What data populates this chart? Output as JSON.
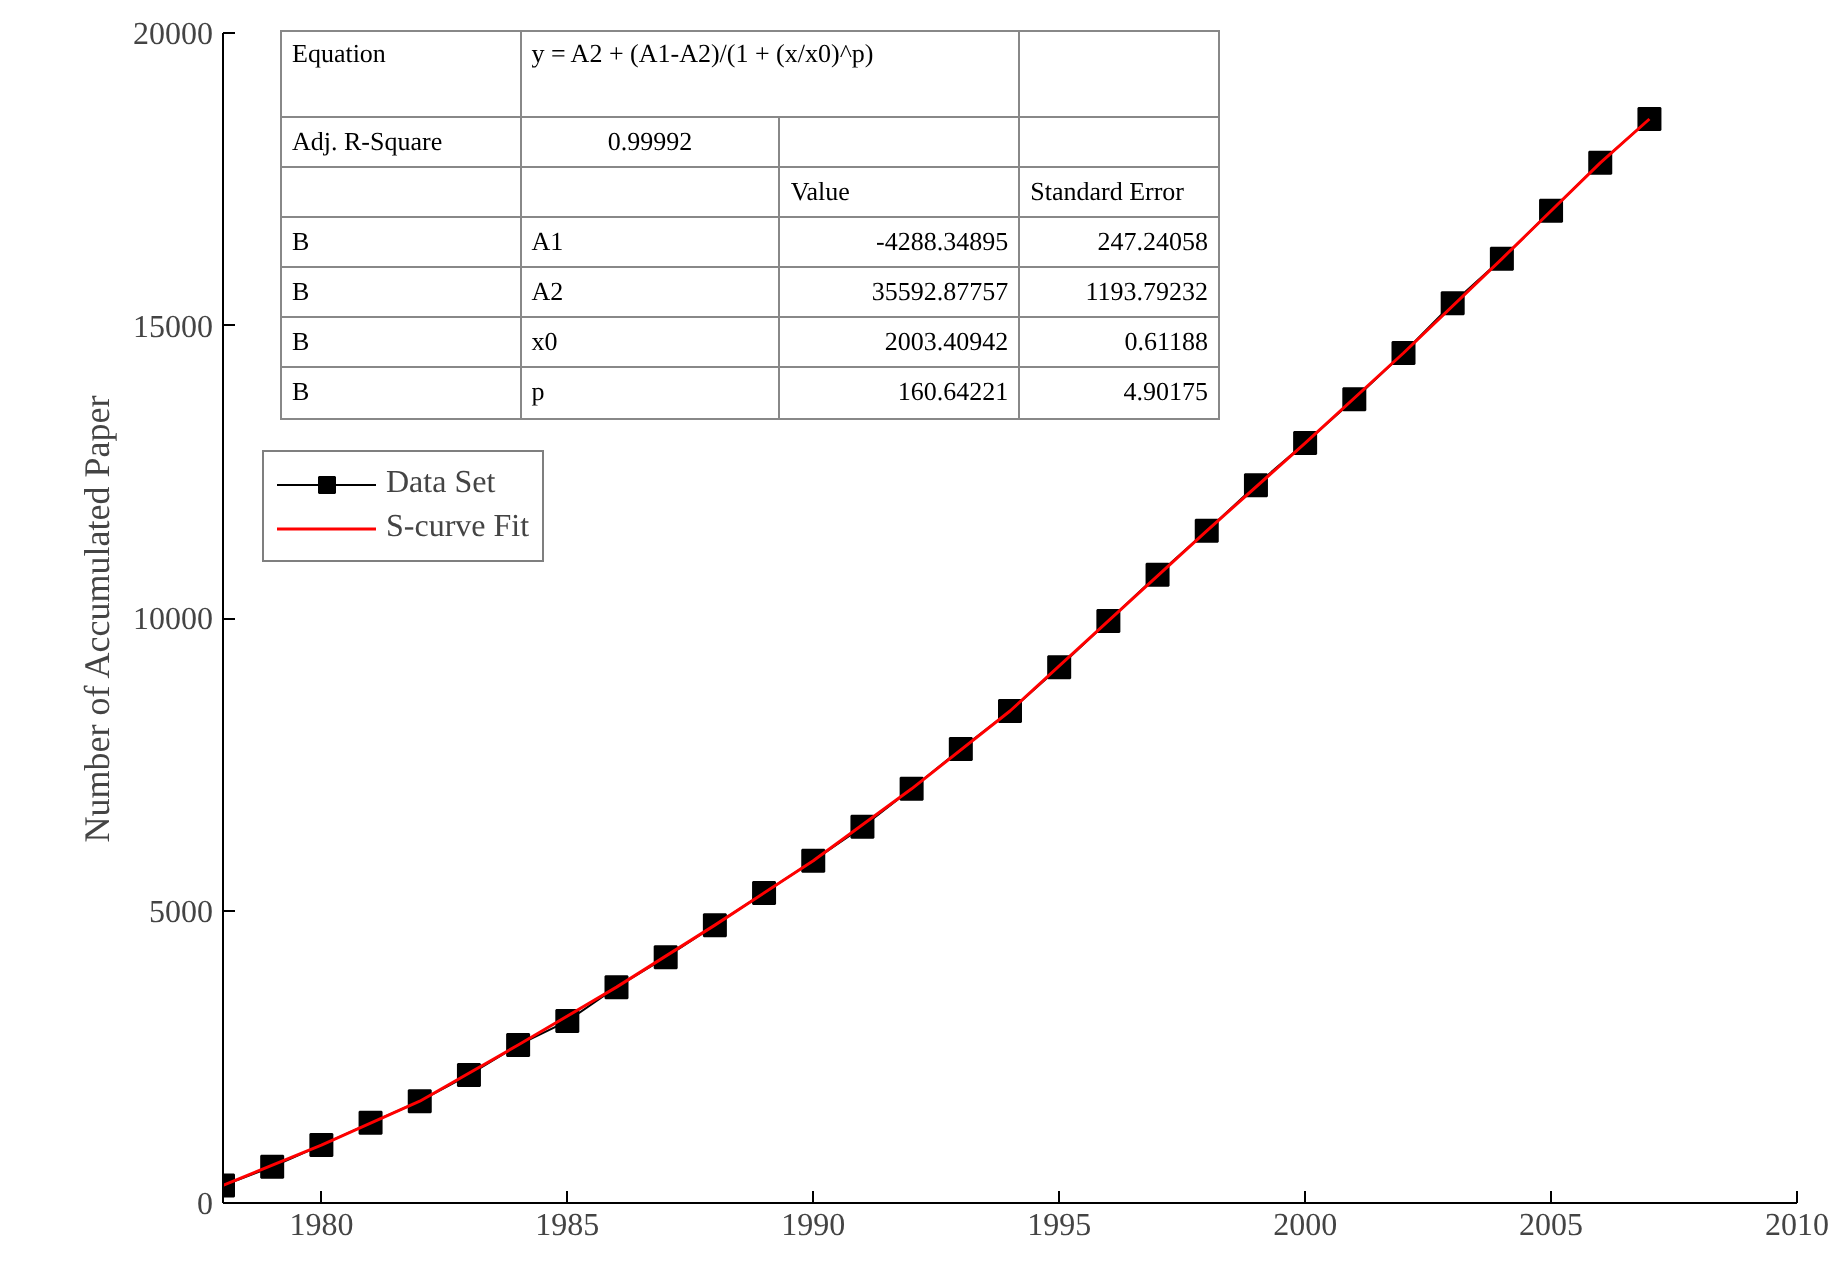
{
  "chart_data": {
    "type": "line",
    "ylabel": "Number of Accumulated Paper",
    "x": [
      1978,
      1979,
      1980,
      1981,
      1982,
      1983,
      1984,
      1985,
      1986,
      1987,
      1988,
      1989,
      1990,
      1991,
      1992,
      1993,
      1994,
      1995,
      1996,
      1997,
      1998,
      1999,
      2000,
      2001,
      2002,
      2003,
      2004,
      2005,
      2006,
      2007
    ],
    "series": [
      {
        "name": "Data Set",
        "color": "#000000",
        "marker": "square",
        "values": [
          300,
          620,
          990,
          1370,
          1740,
          2190,
          2700,
          3110,
          3690,
          4200,
          4750,
          5300,
          5850,
          6430,
          7080,
          7760,
          8410,
          9160,
          9950,
          10740,
          11490,
          12270,
          12990,
          13740,
          14530,
          15380,
          16140,
          16960,
          17780,
          18530
        ]
      },
      {
        "name": "S-curve Fit",
        "color": "#ff0000",
        "marker": "none",
        "x": [
          1978,
          1980,
          1982,
          1984,
          1986,
          1988,
          1990,
          1992,
          1994,
          1996,
          1998,
          2000,
          2002,
          2004,
          2006,
          2007
        ],
        "values": [
          300,
          990,
          1740,
          2700,
          3690,
          4750,
          5850,
          7080,
          8410,
          9950,
          11490,
          12990,
          14530,
          16140,
          17780,
          18530
        ]
      }
    ],
    "xlim": [
      1978,
      2010
    ],
    "xticks": [
      1980,
      1985,
      1990,
      1995,
      2000,
      2005,
      2010
    ],
    "ylim": [
      0,
      20000
    ],
    "yticks": [
      0,
      5000,
      10000,
      15000,
      20000
    ],
    "grid": false,
    "legend": "left",
    "annotations": [
      "Equation",
      "y = A2 + (A1-A2)/(1 + (x/x0)^p)",
      "Adj. R-Square",
      "0.99992",
      "Value",
      "Standard Error",
      "B",
      "A1",
      "-4288.34895",
      "247.24058",
      "B",
      "A2",
      "35592.87757",
      "1193.79232",
      "B",
      "x0",
      "2003.40942",
      "0.61188",
      "B",
      "p",
      "160.64221",
      "4.90175"
    ]
  }
}
